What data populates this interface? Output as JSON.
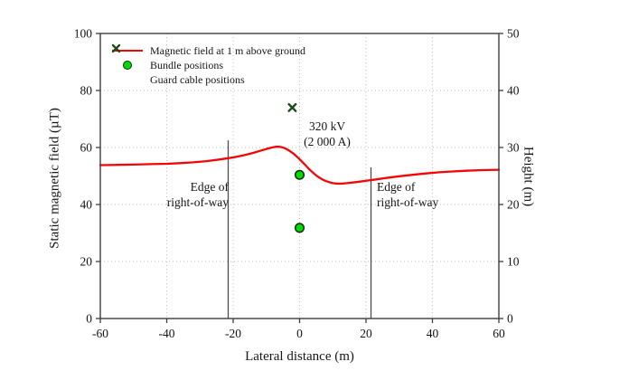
{
  "figure": {
    "legend": {
      "items": [
        {
          "label": "Magnetic field at 1 m above ground",
          "marker": "red-line"
        },
        {
          "label": "Bundle positions",
          "marker": "green-circle"
        },
        {
          "label": "Guard cable positions",
          "marker": "dark-green-x"
        }
      ]
    },
    "annotation": {
      "line1": "320 kV",
      "line2": "(2 000 A)"
    },
    "row_label": {
      "line1": "Edge of",
      "line2": "right-of-way"
    }
  },
  "chart_data": {
    "type": "line",
    "title": "",
    "xlabel": "Lateral distance (m)",
    "ylabel_left": "Static magnetic field (µT)",
    "ylabel_right": "Height (m)",
    "xlim": [
      -60,
      60
    ],
    "ylim_left": [
      0,
      100
    ],
    "ylim_right": [
      0,
      50
    ],
    "x_ticks": [
      -60,
      -40,
      -20,
      0,
      20,
      40,
      60
    ],
    "y_ticks_left": [
      0,
      20,
      40,
      60,
      80,
      100
    ],
    "y_ticks_right": [
      0,
      10,
      20,
      30,
      40,
      50
    ],
    "grid": {
      "style": "dotted",
      "color": "#bbbbbb",
      "vertical_at": [
        -40,
        -20,
        0,
        20,
        40
      ],
      "horizontal_at_left_units": [
        20,
        40,
        60,
        80
      ]
    },
    "legend_position": "upper-left-inside",
    "colors": {
      "curve": "#f50505",
      "bundle_fill": "#00dc00",
      "bundle_edge": "#0b2e0b",
      "guard": "#1c4b1c",
      "axis": "#3d3d3d",
      "row_line": "#4d4d4d"
    },
    "series": [
      {
        "name": "Magnetic field at 1 m above ground",
        "type": "line",
        "axis": "left",
        "x": [
          -60,
          -55,
          -50,
          -45,
          -40,
          -36,
          -32,
          -28,
          -24,
          -20,
          -17,
          -14,
          -12,
          -10,
          -9,
          -8,
          -7,
          -6,
          -5,
          -4,
          -3,
          -2,
          -1,
          0,
          1,
          2,
          3,
          4,
          5,
          6,
          7,
          8,
          9,
          10,
          11,
          12,
          13,
          14,
          16,
          18,
          20,
          23,
          26,
          30,
          34,
          38,
          42,
          46,
          50,
          55,
          60
        ],
        "y_uT": [
          53.8,
          53.9,
          54.0,
          54.15,
          54.3,
          54.5,
          54.8,
          55.2,
          55.8,
          56.5,
          57.2,
          58.1,
          58.8,
          59.5,
          59.8,
          60.1,
          60.3,
          60.25,
          60.0,
          59.5,
          58.8,
          58.0,
          57.0,
          55.9,
          54.7,
          53.5,
          52.3,
          51.2,
          50.2,
          49.4,
          48.7,
          48.2,
          47.8,
          47.5,
          47.35,
          47.3,
          47.35,
          47.45,
          47.7,
          48.0,
          48.35,
          48.8,
          49.3,
          49.9,
          50.4,
          50.9,
          51.3,
          51.6,
          51.85,
          52.05,
          52.2
        ]
      },
      {
        "name": "Bundle positions",
        "type": "scatter",
        "marker": "circle",
        "axis": "right",
        "points": [
          {
            "x": 0,
            "height_m": 25.2
          },
          {
            "x": 0,
            "height_m": 15.9
          }
        ]
      },
      {
        "name": "Guard cable positions",
        "type": "scatter",
        "marker": "x",
        "axis": "right",
        "points": [
          {
            "x": -2.2,
            "height_m": 37.0
          }
        ]
      }
    ],
    "right_of_way": {
      "edges_x": [
        -21.5,
        21.5
      ],
      "line_top_left_units": [
        62.5,
        53.0
      ],
      "label": "Edge of right-of-way"
    },
    "annotations": [
      {
        "text": "320 kV",
        "x_data": 8,
        "y_left_units": 67.3
      },
      {
        "text": "(2 000 A)",
        "x_data": 8,
        "y_left_units": 61.9
      }
    ]
  }
}
